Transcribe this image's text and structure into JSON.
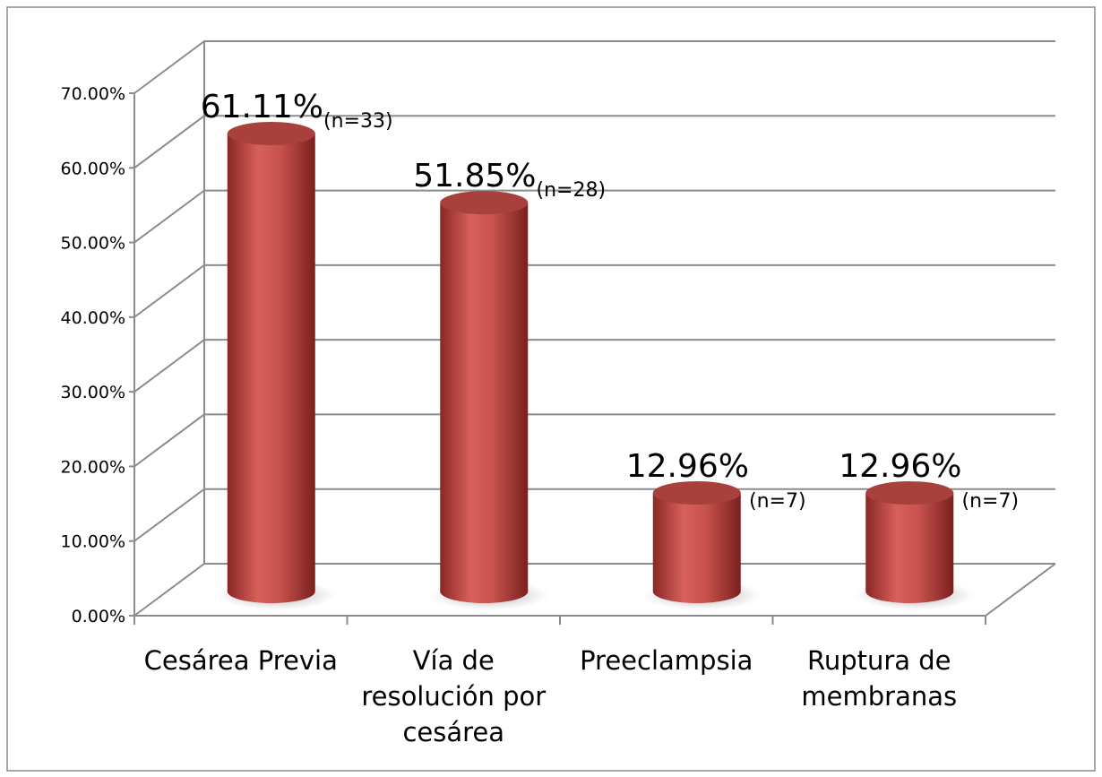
{
  "chart_data": {
    "type": "bar3d",
    "categories": [
      "Cesárea Previa",
      "Vía de resolución por cesárea",
      "Preeclampsia",
      "Ruptura de membranas"
    ],
    "values": [
      61.11,
      51.85,
      12.96,
      12.96
    ],
    "value_labels": [
      "61.11%",
      "51.85%",
      "12.96%",
      "12.96%"
    ],
    "annotations": [
      "(n=33)",
      "(n=28)",
      "(n=7)",
      "(n=7)"
    ],
    "color": "#c0504d",
    "ylim": [
      0,
      70
    ],
    "yticks": [
      {
        "value": 0,
        "label": "0.00%"
      },
      {
        "value": 10,
        "label": "10.00%"
      },
      {
        "value": 20,
        "label": "20.00%"
      },
      {
        "value": 30,
        "label": "30.00%"
      },
      {
        "value": 40,
        "label": "40.00%"
      },
      {
        "value": 50,
        "label": "50.00%"
      },
      {
        "value": 60,
        "label": "60.00%"
      },
      {
        "value": 70,
        "label": "70.00%"
      }
    ],
    "grid": true
  }
}
